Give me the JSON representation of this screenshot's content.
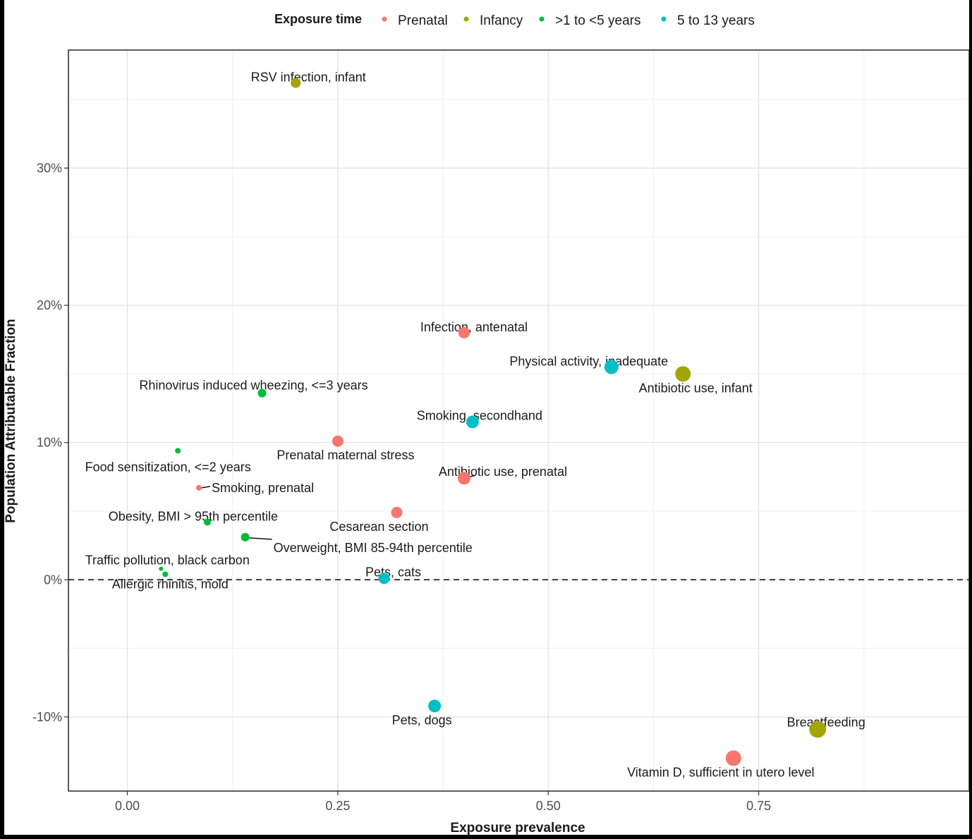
{
  "chart_data": {
    "type": "scatter",
    "xlabel": "Exposure prevalence",
    "ylabel": "Population Attributable Fraction",
    "xlim": [
      -0.07,
      1.0
    ],
    "ylim": [
      -0.154,
      0.386
    ],
    "x_ticks": [
      {
        "value": 0.0,
        "label": "0.00"
      },
      {
        "value": 0.25,
        "label": "0.25"
      },
      {
        "value": 0.5,
        "label": "0.50"
      },
      {
        "value": 0.75,
        "label": "0.75"
      }
    ],
    "y_ticks": [
      {
        "value": -0.1,
        "label": "-10%"
      },
      {
        "value": 0.0,
        "label": "0%"
      },
      {
        "value": 0.1,
        "label": "10%"
      },
      {
        "value": 0.2,
        "label": "20%"
      },
      {
        "value": 0.3,
        "label": "30%"
      }
    ],
    "reference_line": {
      "y": 0,
      "style": "dashed"
    },
    "grid": true,
    "legend": {
      "title": "Exposure time",
      "position": "top",
      "entries": [
        {
          "name": "Prenatal",
          "color": "#F8766D"
        },
        {
          "name": "Infancy",
          "color": "#A3A500"
        },
        {
          "name": ">1 to <5 years",
          "color": "#00BA38"
        },
        {
          "name": "5 to 13 years",
          "color": "#00BFC4"
        }
      ]
    },
    "points": [
      {
        "label": "RSV infection, infant",
        "x": 0.2,
        "y": 0.362,
        "group": "Infancy",
        "size": 7
      },
      {
        "label": "Infection, antenatal",
        "x": 0.4,
        "y": 0.18,
        "group": "Prenatal",
        "size": 8
      },
      {
        "label": "Physical activity, inadequate",
        "x": 0.575,
        "y": 0.155,
        "group": "5 to 13 years",
        "size": 10
      },
      {
        "label": "Antibiotic use, infant",
        "x": 0.66,
        "y": 0.15,
        "group": "Infancy",
        "size": 11
      },
      {
        "label": "Rhinovirus induced wheezing, <=3 years",
        "x": 0.16,
        "y": 0.136,
        "group": ">1 to <5 years",
        "size": 6
      },
      {
        "label": "Smoking, secondhand",
        "x": 0.41,
        "y": 0.115,
        "group": "5 to 13 years",
        "size": 9
      },
      {
        "label": "Prenatal maternal stress",
        "x": 0.25,
        "y": 0.101,
        "group": "Prenatal",
        "size": 8
      },
      {
        "label": "Food sensitization, <=2 years",
        "x": 0.06,
        "y": 0.094,
        "group": ">1 to <5 years",
        "size": 4
      },
      {
        "label": "Antibiotic use, prenatal",
        "x": 0.4,
        "y": 0.074,
        "group": "Prenatal",
        "size": 9
      },
      {
        "label": "Smoking, prenatal",
        "x": 0.085,
        "y": 0.067,
        "group": "Prenatal",
        "size": 4
      },
      {
        "label": "Cesarean section",
        "x": 0.32,
        "y": 0.049,
        "group": "Prenatal",
        "size": 8
      },
      {
        "label": "Obesity, BMI > 95th percentile",
        "x": 0.095,
        "y": 0.042,
        "group": ">1 to <5 years",
        "size": 5
      },
      {
        "label": "Overweight, BMI 85-94th percentile",
        "x": 0.14,
        "y": 0.031,
        "group": ">1 to <5 years",
        "size": 6
      },
      {
        "label": "Traffic pollution, black carbon",
        "x": 0.04,
        "y": 0.008,
        "group": ">1 to <5 years",
        "size": 3
      },
      {
        "label": "Allergic rhinitis, mold",
        "x": 0.045,
        "y": 0.004,
        "group": ">1 to <5 years",
        "size": 4
      },
      {
        "label": "Pets, cats",
        "x": 0.305,
        "y": 0.001,
        "group": "5 to 13 years",
        "size": 8
      },
      {
        "label": "Pets, dogs",
        "x": 0.365,
        "y": -0.092,
        "group": "5 to 13 years",
        "size": 9
      },
      {
        "label": "Breastfeeding",
        "x": 0.82,
        "y": -0.109,
        "group": "Infancy",
        "size": 12
      },
      {
        "label": "Vitamin D, sufficient in utero level",
        "x": 0.72,
        "y": -0.13,
        "group": "Prenatal",
        "size": 11
      }
    ]
  }
}
